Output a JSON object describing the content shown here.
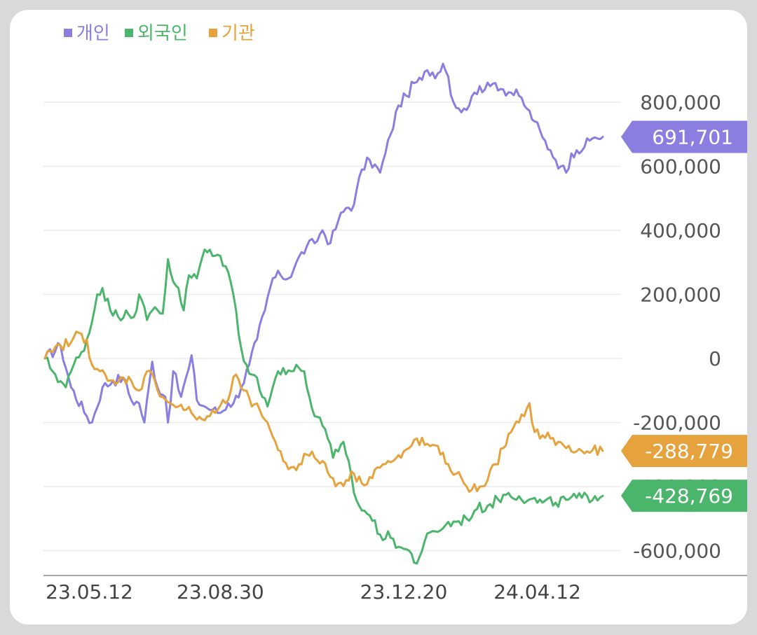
{
  "colors": {
    "individual": "#8a7ee0",
    "foreign": "#4cb56c",
    "institution": "#e6a23c"
  },
  "chart_data": {
    "type": "line",
    "title": "",
    "xlabel": "",
    "ylabel": "",
    "ylim": [
      -680000,
      960000
    ],
    "yticks": [
      800000,
      600000,
      400000,
      200000,
      0,
      -200000,
      -400000,
      -600000
    ],
    "ytick_labels": [
      "800,000",
      "600,000",
      "400,000",
      "200,000",
      "0",
      "-200,000",
      "-400,000",
      "-600,000"
    ],
    "xtick_labels": [
      "23.05.12",
      "23.08.30",
      "23.12.20",
      "24.04.12"
    ],
    "xtick_index": [
      17,
      67,
      137,
      188
    ],
    "x_count": 213,
    "grid": true,
    "legend_position": "top-left",
    "series": [
      {
        "name": "개인",
        "color_key": "individual",
        "last_label": "691,701",
        "last_value": 691701,
        "keypoints": [
          [
            0,
            0
          ],
          [
            6,
            40000
          ],
          [
            10,
            -90000
          ],
          [
            16,
            -180000
          ],
          [
            18,
            -200000
          ],
          [
            22,
            -90000
          ],
          [
            26,
            -70000
          ],
          [
            30,
            -60000
          ],
          [
            33,
            -130000
          ],
          [
            36,
            -140000
          ],
          [
            38,
            -200000
          ],
          [
            41,
            -10000
          ],
          [
            43,
            -90000
          ],
          [
            46,
            -120000
          ],
          [
            47,
            -200000
          ],
          [
            49,
            -40000
          ],
          [
            52,
            -120000
          ],
          [
            55,
            -30000
          ],
          [
            56,
            10000
          ],
          [
            58,
            -130000
          ],
          [
            61,
            -150000
          ],
          [
            64,
            -160000
          ],
          [
            67,
            -170000
          ],
          [
            70,
            -140000
          ],
          [
            72,
            -140000
          ],
          [
            75,
            -90000
          ],
          [
            78,
            -20000
          ],
          [
            81,
            60000
          ],
          [
            84,
            150000
          ],
          [
            87,
            250000
          ],
          [
            90,
            260000
          ],
          [
            93,
            250000
          ],
          [
            96,
            300000
          ],
          [
            100,
            350000
          ],
          [
            103,
            360000
          ],
          [
            106,
            400000
          ],
          [
            109,
            360000
          ],
          [
            112,
            430000
          ],
          [
            115,
            470000
          ],
          [
            118,
            480000
          ],
          [
            121,
            590000
          ],
          [
            124,
            620000
          ],
          [
            128,
            580000
          ],
          [
            130,
            640000
          ],
          [
            132,
            700000
          ],
          [
            135,
            790000
          ],
          [
            138,
            820000
          ],
          [
            141,
            860000
          ],
          [
            144,
            870000
          ],
          [
            146,
            900000
          ],
          [
            150,
            890000
          ],
          [
            152,
            920000
          ],
          [
            154,
            880000
          ],
          [
            156,
            800000
          ],
          [
            158,
            780000
          ],
          [
            160,
            780000
          ],
          [
            162,
            790000
          ],
          [
            164,
            830000
          ],
          [
            166,
            850000
          ],
          [
            168,
            840000
          ],
          [
            170,
            850000
          ],
          [
            172,
            860000
          ],
          [
            175,
            840000
          ],
          [
            178,
            830000
          ],
          [
            181,
            820000
          ],
          [
            184,
            780000
          ],
          [
            187,
            740000
          ],
          [
            190,
            690000
          ],
          [
            193,
            650000
          ],
          [
            195,
            620000
          ],
          [
            197,
            600000
          ],
          [
            199,
            580000
          ],
          [
            201,
            640000
          ],
          [
            203,
            650000
          ],
          [
            206,
            660000
          ],
          [
            208,
            680000
          ],
          [
            210,
            690000
          ],
          [
            213,
            691701
          ]
        ]
      },
      {
        "name": "외국인",
        "color_key": "foreign",
        "last_label": "-428,769",
        "last_value": -428769,
        "keypoints": [
          [
            0,
            0
          ],
          [
            4,
            -50000
          ],
          [
            8,
            -90000
          ],
          [
            11,
            -20000
          ],
          [
            14,
            20000
          ],
          [
            17,
            80000
          ],
          [
            20,
            200000
          ],
          [
            22,
            220000
          ],
          [
            25,
            150000
          ],
          [
            28,
            130000
          ],
          [
            31,
            150000
          ],
          [
            34,
            130000
          ],
          [
            36,
            200000
          ],
          [
            39,
            120000
          ],
          [
            42,
            160000
          ],
          [
            45,
            140000
          ],
          [
            47,
            310000
          ],
          [
            49,
            240000
          ],
          [
            51,
            220000
          ],
          [
            53,
            150000
          ],
          [
            55,
            260000
          ],
          [
            58,
            250000
          ],
          [
            61,
            340000
          ],
          [
            64,
            320000
          ],
          [
            67,
            320000
          ],
          [
            70,
            270000
          ],
          [
            73,
            150000
          ],
          [
            75,
            30000
          ],
          [
            77,
            -20000
          ],
          [
            79,
            -50000
          ],
          [
            81,
            -60000
          ],
          [
            83,
            -120000
          ],
          [
            85,
            -150000
          ],
          [
            87,
            -90000
          ],
          [
            89,
            -40000
          ],
          [
            91,
            -30000
          ],
          [
            94,
            -40000
          ],
          [
            97,
            -30000
          ],
          [
            99,
            -40000
          ],
          [
            101,
            -120000
          ],
          [
            103,
            -180000
          ],
          [
            106,
            -210000
          ],
          [
            108,
            -250000
          ],
          [
            110,
            -310000
          ],
          [
            112,
            -290000
          ],
          [
            114,
            -260000
          ],
          [
            116,
            -320000
          ],
          [
            118,
            -420000
          ],
          [
            120,
            -460000
          ],
          [
            124,
            -490000
          ],
          [
            128,
            -550000
          ],
          [
            132,
            -560000
          ],
          [
            136,
            -590000
          ],
          [
            140,
            -610000
          ],
          [
            142,
            -640000
          ],
          [
            145,
            -570000
          ],
          [
            149,
            -540000
          ],
          [
            153,
            -520000
          ],
          [
            157,
            -510000
          ],
          [
            161,
            -500000
          ],
          [
            165,
            -470000
          ],
          [
            169,
            -460000
          ],
          [
            173,
            -440000
          ],
          [
            177,
            -420000
          ],
          [
            181,
            -430000
          ],
          [
            185,
            -440000
          ],
          [
            190,
            -450000
          ],
          [
            195,
            -450000
          ],
          [
            200,
            -440000
          ],
          [
            205,
            -435000
          ],
          [
            210,
            -430000
          ],
          [
            213,
            -428769
          ]
        ]
      },
      {
        "name": "기관",
        "color_key": "institution",
        "last_label": "-288,779",
        "last_value": -288779,
        "keypoints": [
          [
            0,
            0
          ],
          [
            3,
            20000
          ],
          [
            6,
            40000
          ],
          [
            10,
            50000
          ],
          [
            13,
            80000
          ],
          [
            16,
            60000
          ],
          [
            18,
            -20000
          ],
          [
            21,
            -40000
          ],
          [
            24,
            -70000
          ],
          [
            27,
            -80000
          ],
          [
            30,
            -60000
          ],
          [
            33,
            -70000
          ],
          [
            36,
            -100000
          ],
          [
            39,
            -40000
          ],
          [
            42,
            -70000
          ],
          [
            45,
            -120000
          ],
          [
            48,
            -140000
          ],
          [
            51,
            -150000
          ],
          [
            54,
            -160000
          ],
          [
            57,
            -180000
          ],
          [
            60,
            -190000
          ],
          [
            63,
            -180000
          ],
          [
            66,
            -160000
          ],
          [
            69,
            -140000
          ],
          [
            71,
            -100000
          ],
          [
            73,
            -50000
          ],
          [
            76,
            -100000
          ],
          [
            79,
            -150000
          ],
          [
            82,
            -160000
          ],
          [
            85,
            -200000
          ],
          [
            88,
            -260000
          ],
          [
            91,
            -320000
          ],
          [
            94,
            -340000
          ],
          [
            97,
            -330000
          ],
          [
            100,
            -300000
          ],
          [
            103,
            -310000
          ],
          [
            106,
            -320000
          ],
          [
            109,
            -370000
          ],
          [
            112,
            -390000
          ],
          [
            115,
            -380000
          ],
          [
            118,
            -360000
          ],
          [
            121,
            -390000
          ],
          [
            124,
            -370000
          ],
          [
            127,
            -340000
          ],
          [
            130,
            -330000
          ],
          [
            133,
            -320000
          ],
          [
            136,
            -310000
          ],
          [
            139,
            -280000
          ],
          [
            142,
            -250000
          ],
          [
            145,
            -270000
          ],
          [
            148,
            -270000
          ],
          [
            151,
            -300000
          ],
          [
            154,
            -330000
          ],
          [
            157,
            -360000
          ],
          [
            160,
            -390000
          ],
          [
            163,
            -410000
          ],
          [
            166,
            -400000
          ],
          [
            169,
            -380000
          ],
          [
            172,
            -330000
          ],
          [
            175,
            -280000
          ],
          [
            178,
            -230000
          ],
          [
            181,
            -200000
          ],
          [
            183,
            -180000
          ],
          [
            185,
            -140000
          ],
          [
            187,
            -230000
          ],
          [
            190,
            -240000
          ],
          [
            193,
            -250000
          ],
          [
            196,
            -260000
          ],
          [
            199,
            -280000
          ],
          [
            203,
            -290000
          ],
          [
            207,
            -290000
          ],
          [
            213,
            -288779
          ]
        ]
      }
    ]
  }
}
